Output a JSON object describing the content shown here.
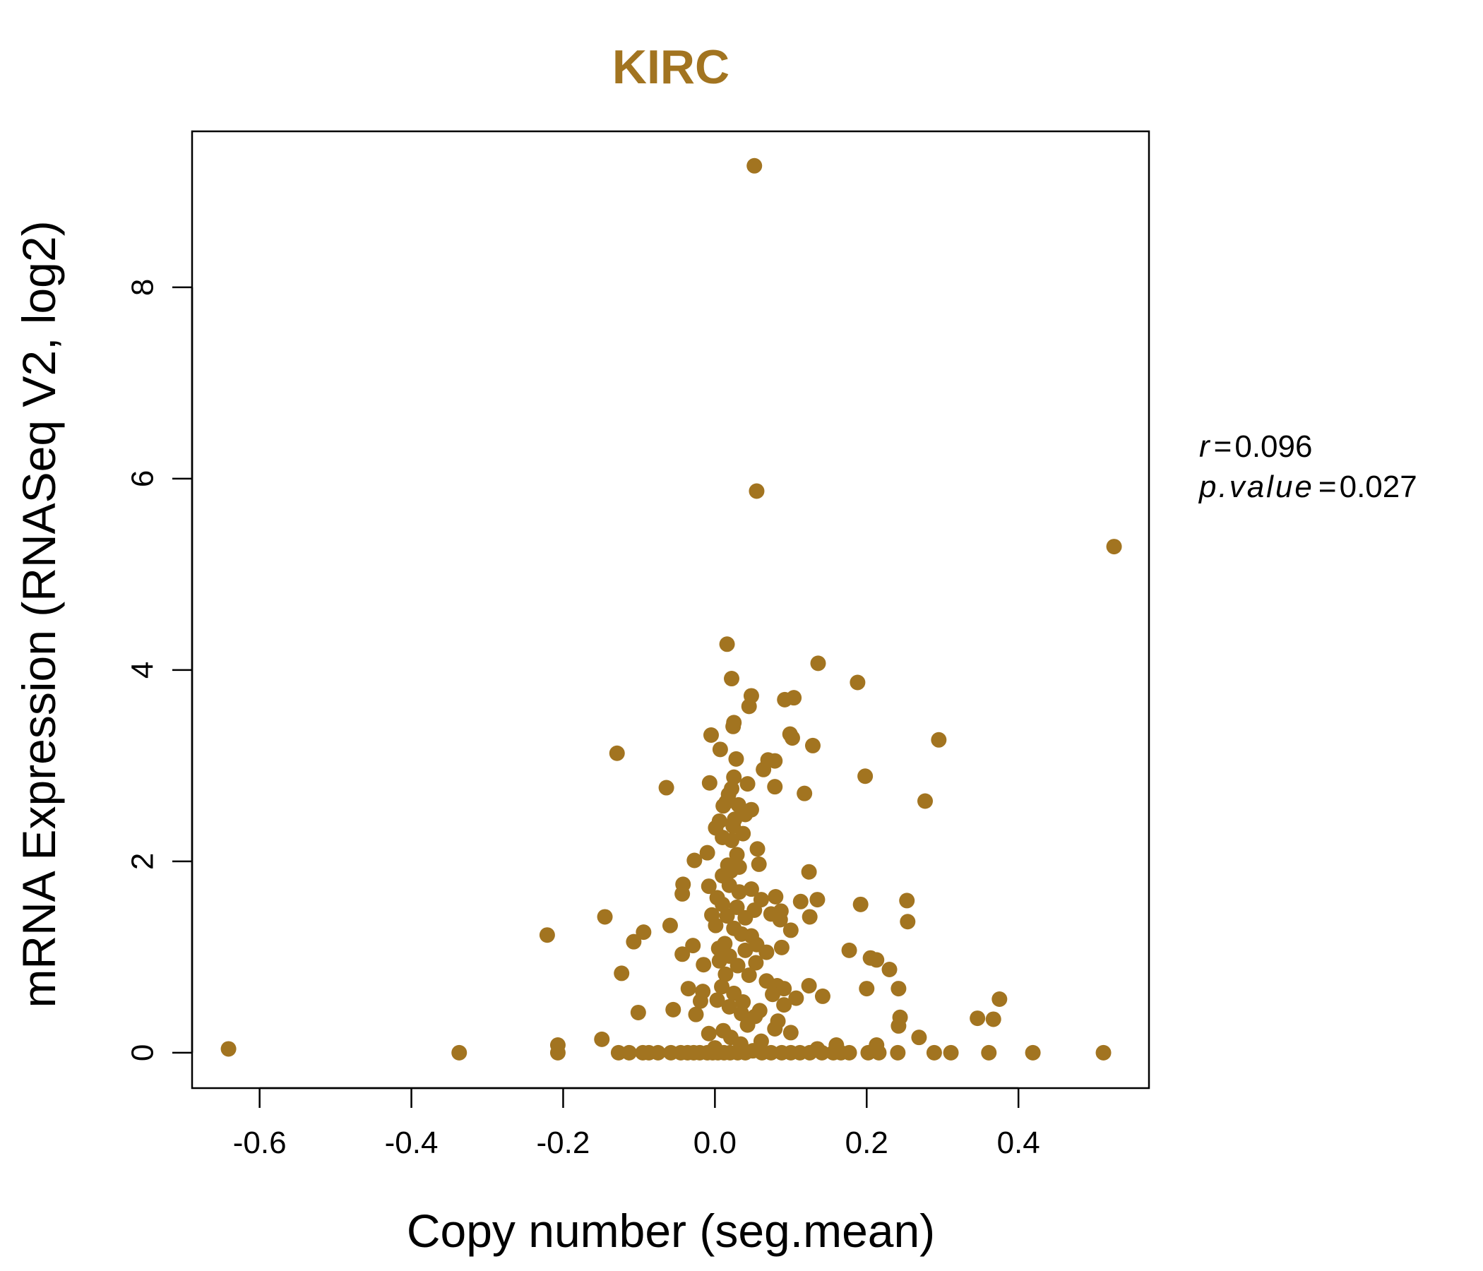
{
  "chart_data": {
    "type": "scatter",
    "title": "KIRC",
    "xlabel": "Copy number (seg.mean)",
    "ylabel": "mRNA Expression (RNASeq V2, log2)",
    "xlim": [
      -0.689,
      0.572
    ],
    "ylim": [
      -0.37,
      9.63
    ],
    "xticks": [
      -0.6,
      -0.4,
      -0.2,
      0.0,
      0.2,
      0.4
    ],
    "xtick_labels": [
      "-0.6",
      "-0.4",
      "-0.2",
      "0.0",
      "0.2",
      "0.4"
    ],
    "yticks": [
      0,
      2,
      4,
      6,
      8
    ],
    "ytick_labels": [
      "0",
      "2",
      "4",
      "6",
      "8"
    ],
    "grid": false,
    "point_color": "#A27420",
    "stats": {
      "r_label": "r",
      "r_value": "0.096",
      "p_label": "p.value",
      "p_value": "0.027"
    },
    "points": [
      [
        0.052,
        9.27
      ],
      [
        0.055,
        5.87
      ],
      [
        0.526,
        5.29
      ],
      [
        0.016,
        4.27
      ],
      [
        0.136,
        4.07
      ],
      [
        0.188,
        3.87
      ],
      [
        0.022,
        3.91
      ],
      [
        0.048,
        3.73
      ],
      [
        0.104,
        3.71
      ],
      [
        0.092,
        3.69
      ],
      [
        0.045,
        3.62
      ],
      [
        0.025,
        3.45
      ],
      [
        0.024,
        3.41
      ],
      [
        -0.005,
        3.32
      ],
      [
        0.099,
        3.33
      ],
      [
        0.102,
        3.29
      ],
      [
        0.295,
        3.27
      ],
      [
        0.129,
        3.21
      ],
      [
        0.007,
        3.17
      ],
      [
        -0.129,
        3.13
      ],
      [
        0.028,
        3.07
      ],
      [
        0.07,
        3.06
      ],
      [
        0.079,
        3.05
      ],
      [
        0.064,
        2.96
      ],
      [
        0.198,
        2.89
      ],
      [
        0.025,
        2.88
      ],
      [
        0.043,
        2.81
      ],
      [
        -0.007,
        2.82
      ],
      [
        0.079,
        2.78
      ],
      [
        -0.064,
        2.77
      ],
      [
        0.022,
        2.76
      ],
      [
        0.118,
        2.71
      ],
      [
        0.018,
        2.7
      ],
      [
        0.277,
        2.63
      ],
      [
        0.015,
        2.62
      ],
      [
        0.031,
        2.59
      ],
      [
        0.011,
        2.58
      ],
      [
        0.048,
        2.54
      ],
      [
        0.04,
        2.49
      ],
      [
        0.026,
        2.44
      ],
      [
        0.006,
        2.42
      ],
      [
        0.001,
        2.35
      ],
      [
        0.024,
        2.37
      ],
      [
        0.037,
        2.29
      ],
      [
        0.01,
        2.25
      ],
      [
        0.022,
        2.22
      ],
      [
        0.056,
        2.13
      ],
      [
        -0.01,
        2.09
      ],
      [
        0.029,
        2.07
      ],
      [
        -0.027,
        2.01
      ],
      [
        0.058,
        1.97
      ],
      [
        0.017,
        1.96
      ],
      [
        0.032,
        1.94
      ],
      [
        0.124,
        1.89
      ],
      [
        0.021,
        1.9
      ],
      [
        0.01,
        1.85
      ],
      [
        -0.042,
        1.76
      ],
      [
        -0.008,
        1.74
      ],
      [
        0.019,
        1.75
      ],
      [
        0.048,
        1.71
      ],
      [
        -0.043,
        1.66
      ],
      [
        0.032,
        1.68
      ],
      [
        0.08,
        1.63
      ],
      [
        0.003,
        1.62
      ],
      [
        0.061,
        1.6
      ],
      [
        0.135,
        1.6
      ],
      [
        0.113,
        1.58
      ],
      [
        0.253,
        1.59
      ],
      [
        0.192,
        1.55
      ],
      [
        0.01,
        1.55
      ],
      [
        0.029,
        1.52
      ],
      [
        0.052,
        1.49
      ],
      [
        0.087,
        1.48
      ],
      [
        0.074,
        1.45
      ],
      [
        -0.004,
        1.44
      ],
      [
        0.016,
        1.43
      ],
      [
        0.125,
        1.42
      ],
      [
        -0.145,
        1.42
      ],
      [
        0.04,
        1.41
      ],
      [
        0.086,
        1.39
      ],
      [
        0.254,
        1.37
      ],
      [
        -0.059,
        1.33
      ],
      [
        0.001,
        1.33
      ],
      [
        0.025,
        1.3
      ],
      [
        0.1,
        1.28
      ],
      [
        -0.094,
        1.26
      ],
      [
        0.035,
        1.24
      ],
      [
        -0.221,
        1.23
      ],
      [
        0.048,
        1.22
      ],
      [
        -0.107,
        1.16
      ],
      [
        0.013,
        1.14
      ],
      [
        0.055,
        1.13
      ],
      [
        -0.029,
        1.12
      ],
      [
        0.088,
        1.1
      ],
      [
        0.005,
        1.09
      ],
      [
        0.04,
        1.07
      ],
      [
        0.177,
        1.07
      ],
      [
        0.068,
        1.05
      ],
      [
        -0.043,
        1.03
      ],
      [
        0.019,
        1.01
      ],
      [
        0.205,
        0.99
      ],
      [
        0.213,
        0.97
      ],
      [
        0.006,
        0.96
      ],
      [
        0.054,
        0.94
      ],
      [
        -0.015,
        0.92
      ],
      [
        0.03,
        0.91
      ],
      [
        0.23,
        0.87
      ],
      [
        -0.123,
        0.83
      ],
      [
        0.014,
        0.82
      ],
      [
        0.045,
        0.81
      ],
      [
        0.068,
        0.75
      ],
      [
        0.082,
        0.7
      ],
      [
        -0.035,
        0.67
      ],
      [
        0.124,
        0.7
      ],
      [
        0.009,
        0.69
      ],
      [
        0.091,
        0.67
      ],
      [
        0.2,
        0.67
      ],
      [
        0.242,
        0.67
      ],
      [
        -0.016,
        0.64
      ],
      [
        0.025,
        0.62
      ],
      [
        0.076,
        0.61
      ],
      [
        0.142,
        0.59
      ],
      [
        0.107,
        0.57
      ],
      [
        0.003,
        0.55
      ],
      [
        0.375,
        0.56
      ],
      [
        -0.019,
        0.54
      ],
      [
        0.037,
        0.53
      ],
      [
        0.091,
        0.5
      ],
      [
        0.019,
        0.48
      ],
      [
        -0.055,
        0.45
      ],
      [
        0.059,
        0.44
      ],
      [
        -0.101,
        0.42
      ],
      [
        0.035,
        0.41
      ],
      [
        -0.025,
        0.4
      ],
      [
        0.053,
        0.38
      ],
      [
        0.244,
        0.37
      ],
      [
        0.346,
        0.36
      ],
      [
        0.367,
        0.35
      ],
      [
        0.083,
        0.33
      ],
      [
        0.079,
        0.25
      ],
      [
        0.011,
        0.23
      ],
      [
        0.043,
        0.29
      ],
      [
        0.242,
        0.28
      ],
      [
        0.1,
        0.21
      ],
      [
        -0.008,
        0.2
      ],
      [
        0.021,
        0.16
      ],
      [
        0.269,
        0.16
      ],
      [
        -0.149,
        0.14
      ],
      [
        0.061,
        0.12
      ],
      [
        0.034,
        0.09
      ],
      [
        -0.207,
        0.08
      ],
      [
        0.16,
        0.08
      ],
      [
        0.213,
        0.08
      ],
      [
        0.0,
        0.05
      ],
      [
        -0.641,
        0.04
      ],
      [
        0.135,
        0.04
      ],
      [
        0.05,
        0.02
      ],
      [
        -0.337,
        0.0
      ],
      [
        -0.207,
        0.0
      ],
      [
        -0.127,
        0.0
      ],
      [
        -0.113,
        0.0
      ],
      [
        -0.095,
        0.0
      ],
      [
        -0.087,
        0.0
      ],
      [
        -0.075,
        0.0
      ],
      [
        -0.058,
        0.0
      ],
      [
        -0.045,
        0.0
      ],
      [
        -0.036,
        0.0
      ],
      [
        -0.028,
        0.0
      ],
      [
        -0.02,
        0.0
      ],
      [
        -0.01,
        0.0
      ],
      [
        -0.003,
        0.0
      ],
      [
        0.004,
        0.0
      ],
      [
        0.012,
        0.0
      ],
      [
        0.02,
        0.0
      ],
      [
        0.03,
        0.0
      ],
      [
        0.04,
        0.0
      ],
      [
        0.062,
        0.0
      ],
      [
        0.074,
        0.0
      ],
      [
        0.088,
        0.0
      ],
      [
        0.1,
        0.0
      ],
      [
        0.112,
        0.0
      ],
      [
        0.125,
        0.0
      ],
      [
        0.141,
        0.0
      ],
      [
        0.156,
        0.0
      ],
      [
        0.166,
        0.0
      ],
      [
        0.177,
        0.0
      ],
      [
        0.202,
        0.0
      ],
      [
        0.216,
        0.0
      ],
      [
        0.241,
        0.0
      ],
      [
        0.289,
        0.0
      ],
      [
        0.311,
        0.0
      ],
      [
        0.361,
        0.0
      ],
      [
        0.419,
        0.0
      ],
      [
        0.512,
        0.0
      ]
    ]
  }
}
